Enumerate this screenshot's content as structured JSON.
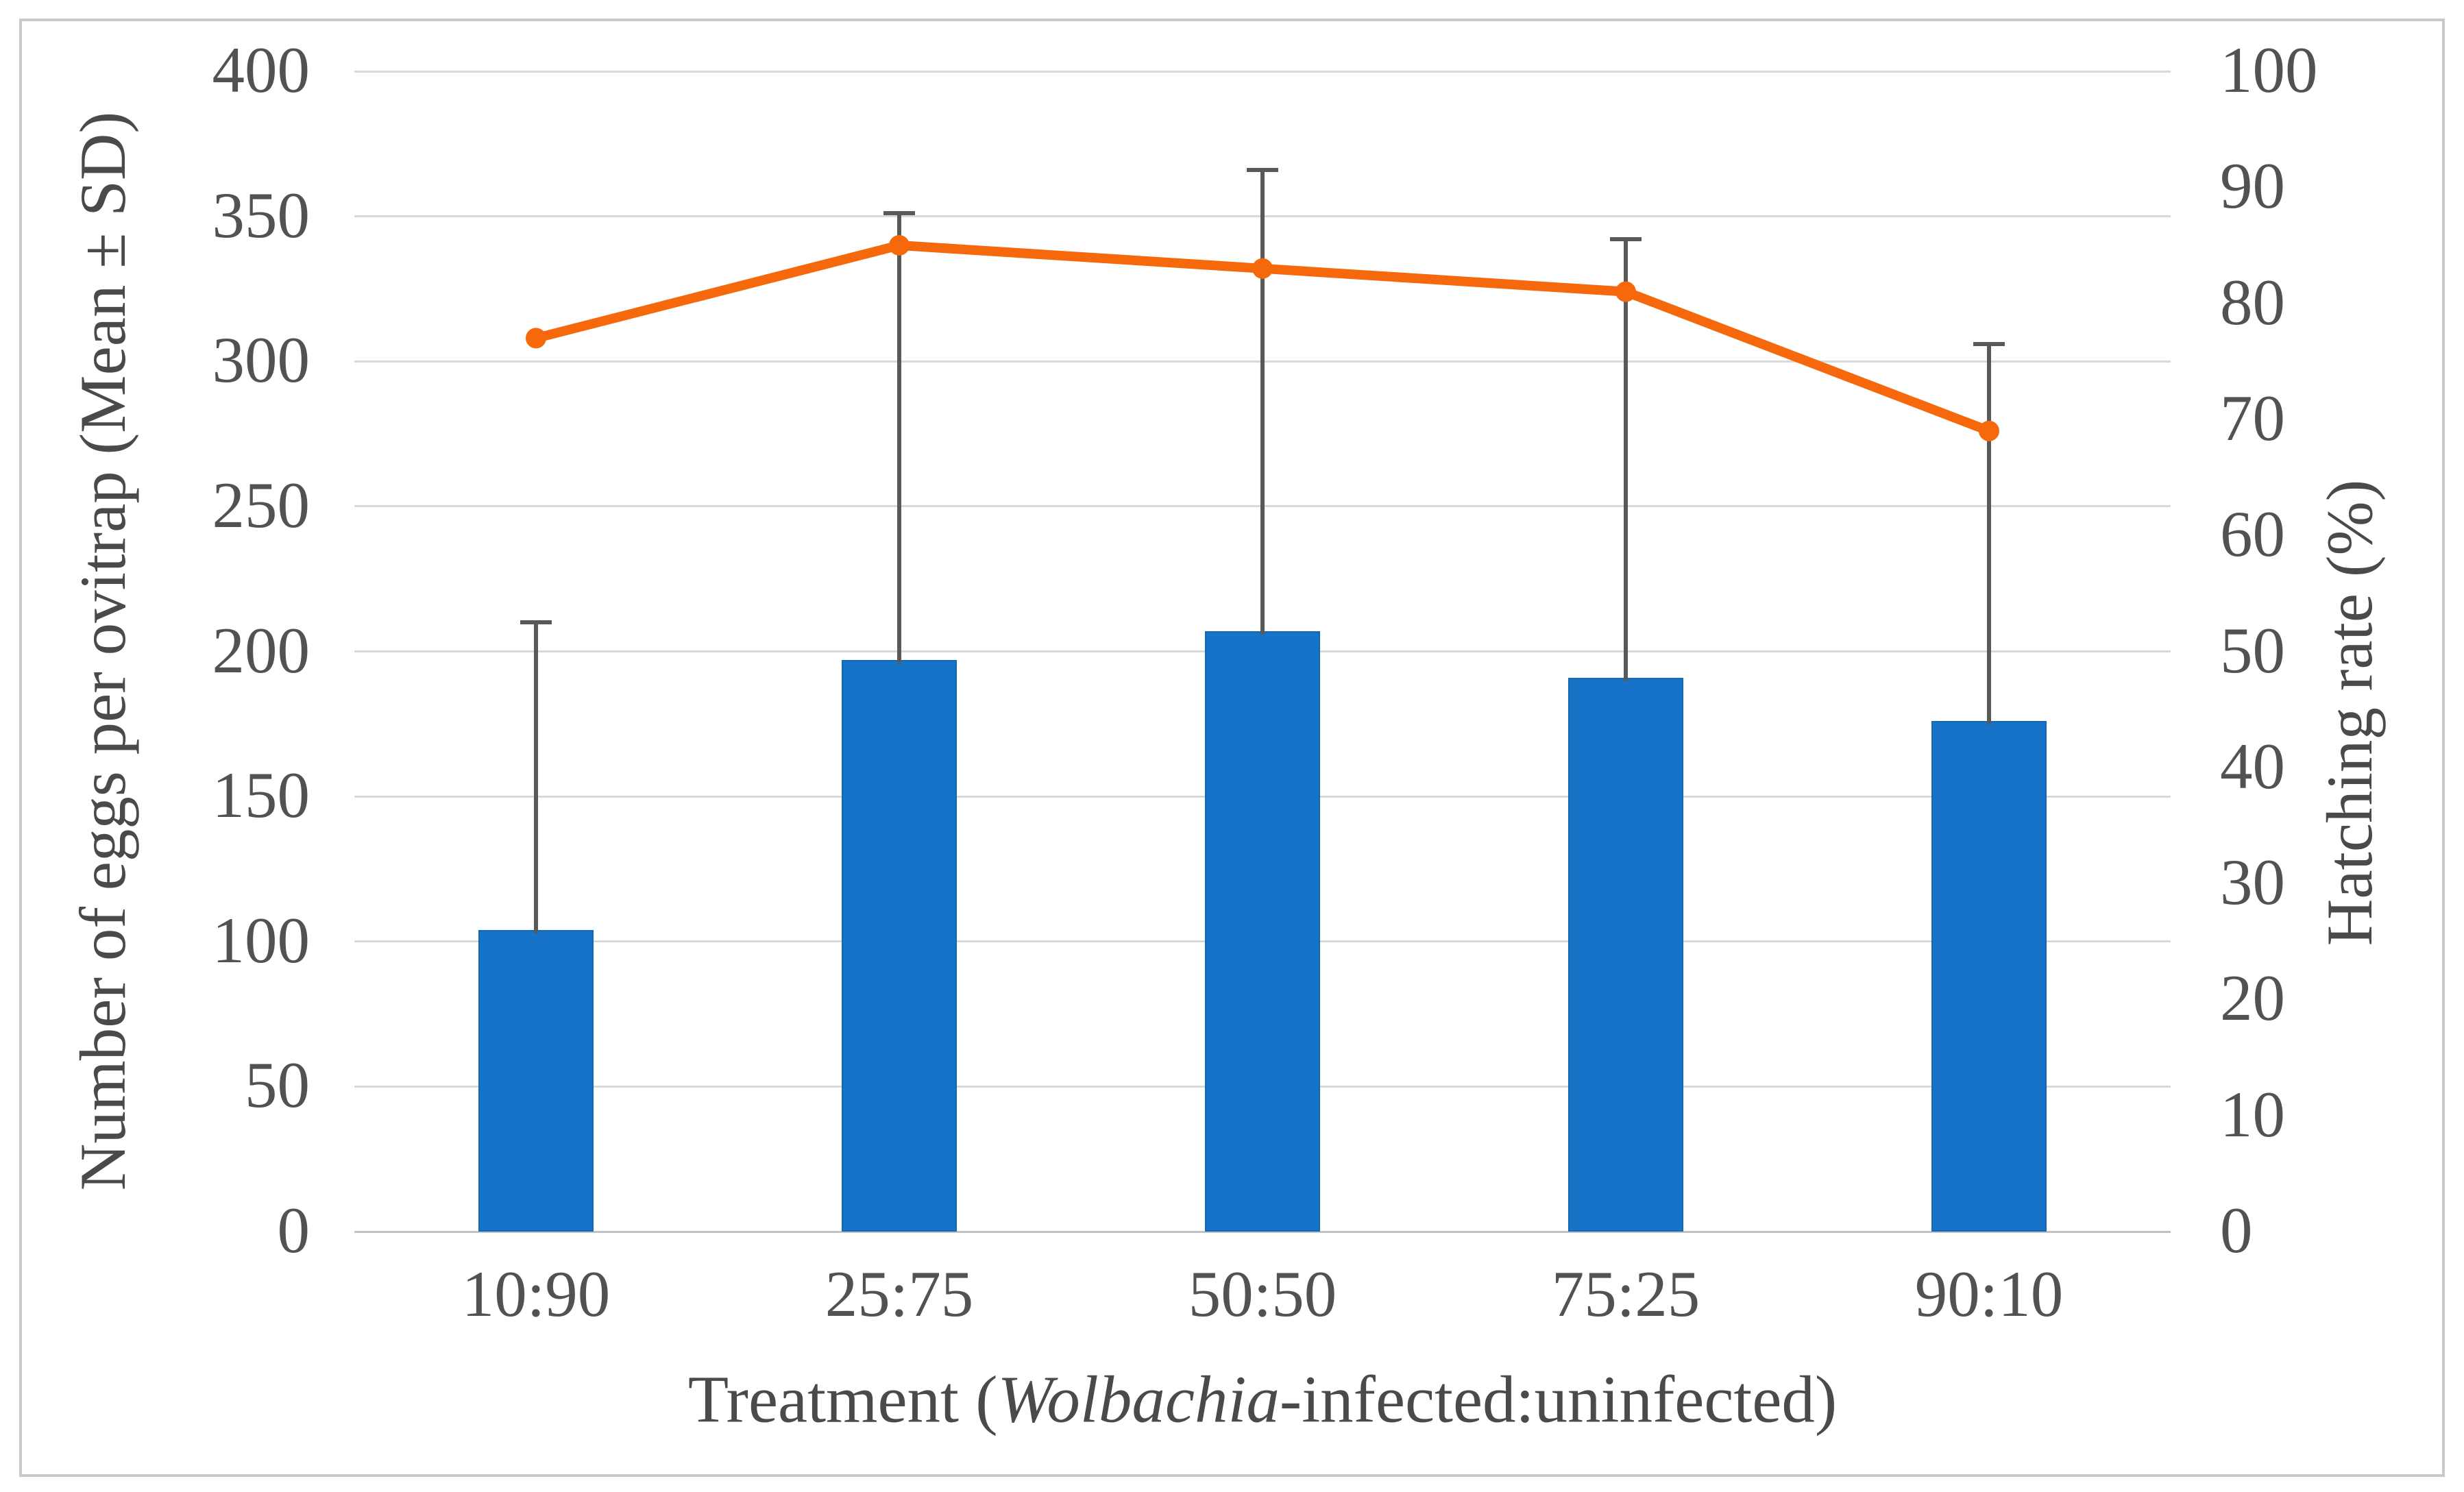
{
  "chart_data": {
    "type": "bar",
    "subtype": "bar-line-combo",
    "categories": [
      "10:90",
      "25:75",
      "50:50",
      "75:25",
      "90:10"
    ],
    "series": [
      {
        "name": "Number of eggs per ovitrap (Mean)",
        "type": "bar",
        "axis": "left",
        "values": [
          104,
          197,
          207,
          191,
          176
        ],
        "sd": [
          106,
          154,
          159,
          151,
          130
        ],
        "color": "#1673c8"
      },
      {
        "name": "Hatching rate",
        "type": "line",
        "axis": "right",
        "values": [
          77,
          85,
          83,
          81,
          69
        ],
        "color": "#f5690c"
      }
    ],
    "left_axis": {
      "label": "Number of eggs per ovitrap (Mean ± SD)",
      "min": 0,
      "max": 400,
      "step": 50
    },
    "right_axis": {
      "label": "Hatching rate (%)",
      "min": 0,
      "max": 100,
      "step": 10
    },
    "x_axis": {
      "label_prefix": "Treatment (",
      "label_italic": "Wolbachia",
      "label_suffix": "-infected:uninfected)"
    },
    "grid": true,
    "legend": "none",
    "colors": {
      "bar": "#1673c8",
      "line": "#f5690c",
      "gridline": "#d9d9d9",
      "error_bar": "#595959",
      "text": "#525252",
      "border": "#c9c9c9"
    }
  }
}
